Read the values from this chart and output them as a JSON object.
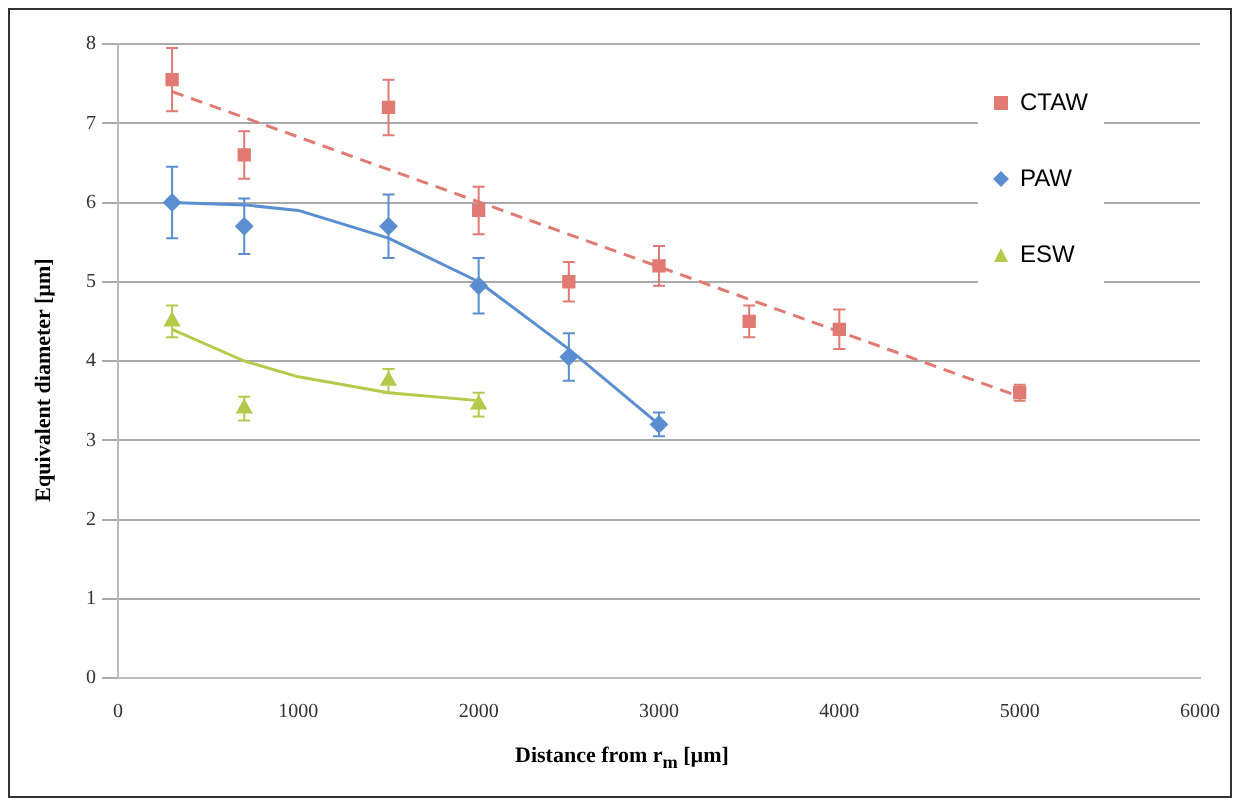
{
  "chart_data": {
    "type": "scatter",
    "xlabel": "Distance from r$_{m}$ [µm]",
    "ylabel": "Equivalent diameter [µm]",
    "xlim": [
      0,
      6000
    ],
    "xticks": [
      0,
      1000,
      2000,
      3000,
      4000,
      5000,
      6000
    ],
    "ylim": [
      0,
      8
    ],
    "yticks": [
      0,
      1,
      2,
      3,
      4,
      5,
      6,
      7,
      8
    ],
    "grid": "y",
    "legend": "top right",
    "series": [
      {
        "name": "CTAW",
        "marker": "square",
        "color": "#e07a72",
        "x": [
          300,
          700,
          1500,
          2000,
          2500,
          3000,
          3500,
          4000,
          5000
        ],
        "values": [
          7.55,
          6.6,
          7.2,
          5.9,
          5.0,
          5.2,
          4.5,
          4.4,
          3.6
        ],
        "errors": [
          0.4,
          0.3,
          0.35,
          0.3,
          0.25,
          0.25,
          0.2,
          0.25,
          0.1
        ]
      },
      {
        "name": "PAW",
        "marker": "diamond",
        "color": "#5b8ed0",
        "x": [
          300,
          700,
          1500,
          2000,
          2500,
          3000
        ],
        "values": [
          6.0,
          5.7,
          5.7,
          4.95,
          4.05,
          3.2
        ],
        "errors": [
          0.45,
          0.35,
          0.4,
          0.35,
          0.3,
          0.15
        ]
      },
      {
        "name": "ESW",
        "marker": "triangle",
        "color": "#b5c94a",
        "x": [
          300,
          700,
          1500,
          2000
        ],
        "values": [
          4.5,
          3.4,
          3.75,
          3.45
        ],
        "errors": [
          0.2,
          0.15,
          0.15,
          0.15
        ]
      },
      {
        "type": "line",
        "marker": "none",
        "line_style": "dashed",
        "color": "#e07a72",
        "x": [
          300,
          5000
        ],
        "values": [
          7.4,
          3.55
        ]
      },
      {
        "type": "line",
        "marker": "none",
        "line_style": "solid",
        "color": "#5b8ed0",
        "x": [
          300,
          700,
          1000,
          1500,
          2000,
          2500,
          3000
        ],
        "values": [
          6.0,
          5.97,
          5.9,
          5.55,
          5.0,
          4.15,
          3.2
        ]
      },
      {
        "type": "line",
        "marker": "none",
        "line_style": "solid",
        "color": "#b5c94a",
        "x": [
          300,
          700,
          1000,
          1500,
          2000
        ],
        "values": [
          4.4,
          4.0,
          3.8,
          3.6,
          3.5
        ]
      }
    ]
  }
}
